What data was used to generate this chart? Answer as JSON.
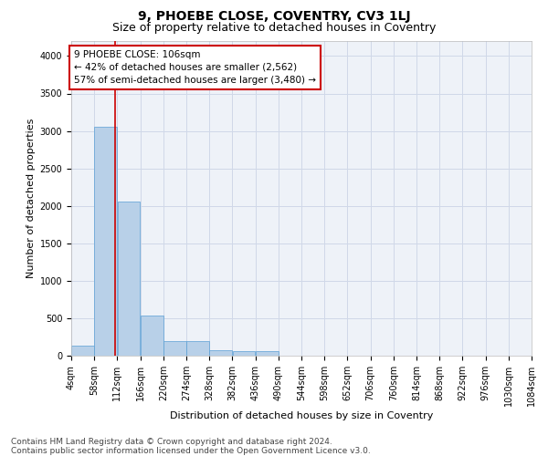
{
  "title": "9, PHOEBE CLOSE, COVENTRY, CV3 1LJ",
  "subtitle": "Size of property relative to detached houses in Coventry",
  "xlabel": "Distribution of detached houses by size in Coventry",
  "ylabel": "Number of detached properties",
  "footer_line1": "Contains HM Land Registry data © Crown copyright and database right 2024.",
  "footer_line2": "Contains public sector information licensed under the Open Government Licence v3.0.",
  "annotation_title": "9 PHOEBE CLOSE: 106sqm",
  "annotation_line2": "← 42% of detached houses are smaller (2,562)",
  "annotation_line3": "57% of semi-detached houses are larger (3,480) →",
  "bar_color": "#b8d0e8",
  "bar_edge_color": "#5a9fd4",
  "grid_color": "#d0d8e8",
  "background_color": "#eef2f8",
  "property_line_color": "#cc0000",
  "property_size_sqm": 106,
  "bin_edges": [
    4,
    58,
    112,
    166,
    220,
    274,
    328,
    382,
    436,
    490,
    544,
    598,
    652,
    706,
    760,
    814,
    868,
    922,
    976,
    1030,
    1084
  ],
  "bar_heights": [
    130,
    3050,
    2060,
    540,
    195,
    195,
    70,
    55,
    55,
    0,
    0,
    0,
    0,
    0,
    0,
    0,
    0,
    0,
    0,
    0
  ],
  "ylim": [
    0,
    4200
  ],
  "yticks": [
    0,
    500,
    1000,
    1500,
    2000,
    2500,
    3000,
    3500,
    4000
  ],
  "annotation_box_color": "#ffffff",
  "annotation_border_color": "#cc0000",
  "title_fontsize": 10,
  "subtitle_fontsize": 9,
  "axis_label_fontsize": 8,
  "tick_fontsize": 7,
  "annotation_fontsize": 7.5,
  "footer_fontsize": 6.5
}
